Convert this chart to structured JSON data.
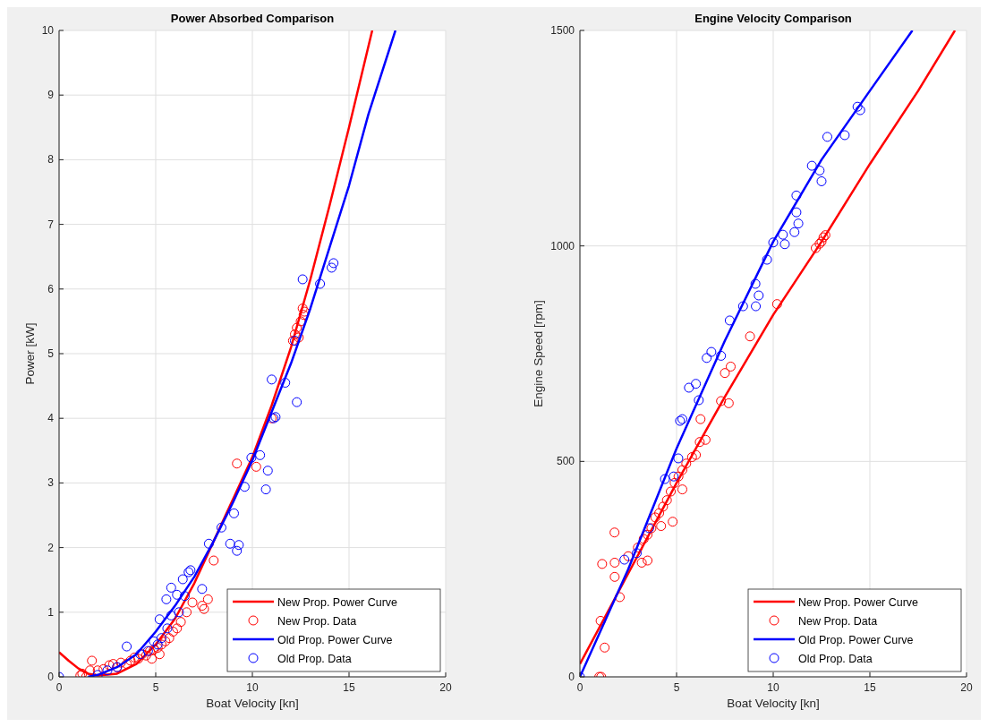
{
  "chart_data": [
    {
      "type": "scatter",
      "title": "Power Absorbed Comparison",
      "xlabel": "Boat Velocity [kn]",
      "ylabel": "Power [kW]",
      "xlim": [
        0,
        20
      ],
      "xticks": [
        0,
        5,
        10,
        15,
        20
      ],
      "ylim": [
        0,
        10
      ],
      "yticks": [
        0,
        1,
        2,
        3,
        4,
        5,
        6,
        7,
        8,
        9,
        10
      ],
      "grid": true,
      "legend": "bottom right",
      "series": [
        {
          "name": "New Prop. Power Curve",
          "type": "line",
          "marker": "none",
          "color": "#ff0000",
          "x": [
            0,
            0.5,
            1,
            1.5,
            2,
            3,
            4,
            5,
            6,
            7,
            8,
            9,
            10,
            11,
            12,
            13,
            14,
            15,
            16.2
          ],
          "values": [
            0.38,
            0.25,
            0.13,
            0.05,
            0.02,
            0.05,
            0.2,
            0.5,
            0.9,
            1.45,
            2.1,
            2.75,
            3.4,
            4.2,
            5.1,
            6.15,
            7.3,
            8.5,
            10
          ]
        },
        {
          "name": "New Prop. Data",
          "marker": "circle",
          "color": "#ff0000",
          "x": [
            1.1,
            1.2,
            1.4,
            1.6,
            1.7,
            2,
            2.3,
            2.6,
            2.8,
            3,
            3.2,
            3.5,
            3.7,
            3.9,
            4.1,
            4.3,
            4.5,
            4.7,
            4.8,
            4.9,
            5.1,
            5.2,
            5.3,
            5.5,
            5.7,
            5.9,
            6.1,
            6.3,
            6.6,
            6.9,
            7.4,
            7.5,
            7.7,
            8,
            9.2,
            10.2,
            11,
            12.1,
            12.2,
            12.3,
            12.4,
            12.5,
            12.6,
            12.65,
            12.7
          ],
          "values": [
            0.02,
            0.05,
            0,
            0.1,
            0.25,
            0.1,
            0.12,
            0.18,
            0.2,
            0.15,
            0.22,
            0.2,
            0.25,
            0.3,
            0.28,
            0.35,
            0.33,
            0.4,
            0.28,
            0.42,
            0.45,
            0.35,
            0.5,
            0.55,
            0.6,
            0.7,
            0.75,
            0.85,
            1,
            1.15,
            1.1,
            1.05,
            1.2,
            1.8,
            3.3,
            3.25,
            4,
            5.2,
            5.3,
            5.4,
            5.25,
            5.5,
            5.7,
            5.6,
            5.65
          ]
        },
        {
          "name": "Old Prop. Power Curve",
          "type": "line",
          "marker": "none",
          "color": "#0000ff",
          "x": [
            1.5,
            2,
            3,
            4,
            5,
            6,
            7,
            8,
            9,
            10,
            11,
            12,
            13,
            14,
            15,
            16,
            17.4
          ],
          "values": [
            0,
            0.03,
            0.15,
            0.35,
            0.7,
            1.1,
            1.55,
            2.1,
            2.7,
            3.35,
            4.1,
            4.85,
            5.7,
            6.65,
            7.6,
            8.7,
            10
          ]
        },
        {
          "name": "Old Prop. Data",
          "marker": "circle",
          "color": "#0000ff",
          "x": [
            0,
            2,
            2.5,
            3,
            3.5,
            4.2,
            4.6,
            4.9,
            5.1,
            5.2,
            5.3,
            5.55,
            5.6,
            5.8,
            5.8,
            6.1,
            6.2,
            6.4,
            6.5,
            6.7,
            6.8,
            7.4,
            7.75,
            8.4,
            8.85,
            9.05,
            9.2,
            9.3,
            9.6,
            9.95,
            10.4,
            10.7,
            10.8,
            11,
            11.1,
            11.2,
            11.7,
            12.2,
            12.3,
            12.6,
            13.5,
            14.1,
            14.2
          ],
          "values": [
            0,
            0.03,
            0.1,
            0.15,
            0.47,
            0.35,
            0.4,
            0.55,
            0.5,
            0.89,
            0.6,
            1.2,
            0.75,
            1.38,
            0.95,
            1.27,
            1,
            1.51,
            1.25,
            1.62,
            1.65,
            1.36,
            2.06,
            2.31,
            2.06,
            2.53,
            1.95,
            2.04,
            2.94,
            3.39,
            3.43,
            2.9,
            3.19,
            4.6,
            4,
            4.02,
            4.55,
            5.2,
            4.25,
            6.15,
            6.08,
            6.33,
            6.4
          ]
        }
      ]
    },
    {
      "type": "scatter",
      "title": "Engine Velocity Comparison",
      "xlabel": "Boat Velocity [kn]",
      "ylabel": "Engine Speed [rpm]",
      "xlim": [
        0,
        20
      ],
      "xticks": [
        0,
        5,
        10,
        15,
        20
      ],
      "ylim": [
        0,
        1500
      ],
      "yticks": [
        0,
        500,
        1000,
        1500
      ],
      "grid": true,
      "legend": "bottom right",
      "series": [
        {
          "name": "New Prop. Power Curve",
          "type": "line",
          "marker": "none",
          "color": "#ff0000",
          "x": [
            0,
            2.5,
            5,
            7.5,
            10,
            12.5,
            15,
            17.5,
            19.4
          ],
          "values": [
            30,
            240,
            450,
            650,
            840,
            1010,
            1190,
            1360,
            1500
          ]
        },
        {
          "name": "New Prop. Data",
          "marker": "circle",
          "color": "#ff0000",
          "x": [
            1,
            1.07,
            1.1,
            1.15,
            1.28,
            1.79,
            1.8,
            1.8,
            2.06,
            2.5,
            3,
            3.2,
            3.3,
            3.5,
            3.5,
            3.7,
            3.9,
            4.1,
            4.2,
            4.3,
            4.5,
            4.7,
            4.8,
            4.9,
            5.1,
            5.3,
            5.3,
            5.5,
            5.8,
            6,
            6.2,
            6.24,
            6.5,
            7.3,
            7.5,
            7.7,
            7.8,
            8.8,
            10.2,
            12.2,
            12.4,
            12.5,
            12.6,
            12.7
          ],
          "values": [
            0,
            130,
            0,
            262,
            68,
            335,
            265,
            232,
            185,
            280,
            300,
            265,
            320,
            330,
            270,
            345,
            370,
            380,
            350,
            395,
            410,
            430,
            360,
            450,
            465,
            480,
            435,
            495,
            510,
            515,
            545,
            598,
            550,
            640,
            705,
            635,
            720,
            790,
            865,
            995,
            1005,
            1010,
            1020,
            1025
          ]
        },
        {
          "name": "Old Prop. Power Curve",
          "type": "line",
          "marker": "none",
          "color": "#0000ff",
          "x": [
            0,
            2.5,
            5,
            7.5,
            10,
            12.5,
            15,
            17.2
          ],
          "values": [
            0,
            250,
            530,
            780,
            1010,
            1200,
            1360,
            1500
          ]
        },
        {
          "name": "Old Prop. Data",
          "marker": "circle",
          "color": "#0000ff",
          "x": [
            0,
            2.3,
            2.94,
            3.58,
            4.4,
            4.85,
            5.09,
            5.18,
            5.3,
            5.64,
            6.0,
            6.15,
            6.56,
            6.8,
            7.3,
            7.75,
            8.44,
            9.08,
            9.1,
            9.25,
            9.68,
            10,
            10.5,
            10.6,
            11.1,
            11.2,
            11.2,
            11.3,
            12,
            12.4,
            12.5,
            12.8,
            13.7,
            14.36,
            14.5
          ],
          "values": [
            0,
            272,
            287,
            345,
            459,
            465,
            507,
            594,
            598,
            671,
            680,
            642,
            740,
            754,
            745,
            827,
            860,
            912,
            860,
            885,
            968,
            1008,
            1026,
            1004,
            1032,
            1078,
            1117,
            1052,
            1186,
            1175,
            1150,
            1253,
            1257,
            1323,
            1315
          ]
        }
      ]
    }
  ]
}
